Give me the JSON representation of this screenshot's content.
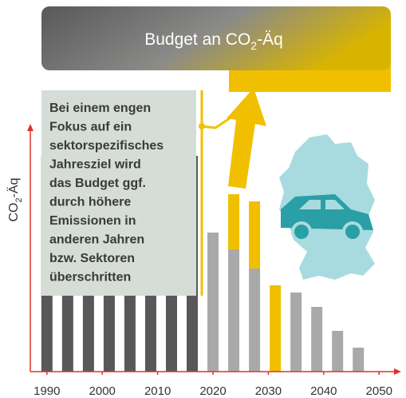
{
  "chart_data": {
    "type": "bar",
    "title": [
      "Budget an CO",
      "2",
      "-Äq"
    ],
    "y_label": [
      "CO",
      "2",
      "-Äq"
    ],
    "annotation": [
      "Bei einem engen",
      "Fokus auf ein",
      "sektorspezifisches",
      "Jahresziel wird",
      "das Budget ggf.",
      "durch höhere",
      "Emissionen in",
      "anderen Jahren",
      "bzw. Sektoren",
      "überschritten"
    ],
    "x": [
      1990,
      1993.75,
      1997.5,
      2001.25,
      2005,
      2008.75,
      2012.5,
      2016.25,
      2020,
      2023.75,
      2027.5,
      2031.25,
      2035,
      2038.75,
      2042.5,
      2046.25
    ],
    "series": [
      {
        "color": "#58585a",
        "values": [
          90,
          90,
          90,
          90,
          90,
          90,
          90,
          90,
          null,
          null,
          null,
          null,
          null,
          null,
          null,
          null
        ]
      },
      {
        "color": "#a9a9ab",
        "values": [
          null,
          null,
          null,
          null,
          null,
          null,
          null,
          null,
          58,
          51,
          43,
          null,
          33,
          27,
          17,
          10
        ]
      },
      {
        "color": "#f0c000",
        "values": [
          null,
          null,
          null,
          null,
          null,
          null,
          null,
          null,
          null,
          23,
          28,
          36,
          null,
          null,
          null,
          null
        ]
      }
    ],
    "stacked": true,
    "xlim": [
      1987,
      2054
    ],
    "xticks": [
      1990,
      2000,
      2010,
      2020,
      2030,
      2040,
      2050
    ],
    "ylim": [
      0,
      100
    ],
    "axis_color": "#e0322a"
  }
}
